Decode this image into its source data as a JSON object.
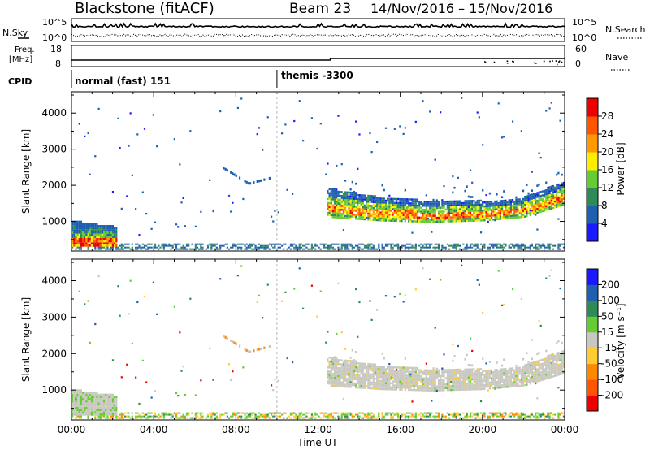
{
  "header": {
    "station": "Blackstone (fitACF)",
    "beam": "Beam 23",
    "dates": "14/Nov/2016 – 15/Nov/2016"
  },
  "aux": {
    "nsky_label": "N.Sky",
    "nsearch_label": "N.Search",
    "noise_ticks_left": [
      "10^5",
      "10^0"
    ],
    "noise_ticks_right": [
      "10^5",
      "10^0"
    ],
    "freq_label_1": "Freq.",
    "freq_label_2": "[MHz]",
    "freq_ticks": [
      "18",
      "8"
    ],
    "nave_label": "Nave",
    "nave_ticks": [
      "60",
      "0"
    ],
    "cpid_label": "CPID",
    "cpid_modes": [
      {
        "name": "normal (fast) 151",
        "start_hour": 0
      },
      {
        "name": "themis -3300",
        "start_hour": 10
      }
    ]
  },
  "axes": {
    "xlabel": "Time UT",
    "xticks": [
      "00:00",
      "04:00",
      "08:00",
      "12:00",
      "16:00",
      "20:00",
      "00:00"
    ],
    "xtick_hours": [
      0,
      4,
      8,
      12,
      16,
      20,
      24
    ],
    "ylabel": "Slant Range [km]",
    "yticks": [
      "1000",
      "2000",
      "3000",
      "4000"
    ],
    "ytick_values": [
      1000,
      2000,
      3000,
      4000
    ],
    "ylim": [
      180,
      4590
    ],
    "xlim_hours": [
      0,
      24
    ]
  },
  "power_colorbar": {
    "label": "Power [dB]",
    "ticks": [
      "4",
      "8",
      "12",
      "16",
      "20",
      "24",
      "28"
    ],
    "tick_values": [
      4,
      8,
      12,
      16,
      20,
      24,
      28
    ],
    "range": [
      0,
      32
    ],
    "colors": [
      "#1a1aff",
      "#1e5fb0",
      "#2e8b57",
      "#66cc33",
      "#ffee00",
      "#ff9900",
      "#ff5500",
      "#ee0000"
    ]
  },
  "velocity_colorbar": {
    "label": "Velocity [m s⁻¹]",
    "ticks": [
      "200",
      "100",
      "50",
      "15",
      "-15",
      "-50",
      "-100",
      "-200"
    ],
    "colors": [
      "#1a1aff",
      "#1e5fb0",
      "#2e8b57",
      "#66cc33",
      "#c8c8c0",
      "#ffcc33",
      "#ff8800",
      "#ff5500",
      "#ee0000"
    ]
  },
  "chart_data": [
    {
      "type": "heatmap",
      "title": "Blackstone (fitACF) Beam 23 14/Nov/2016 – 15/Nov/2016",
      "panel": "power",
      "xlabel": "Time UT",
      "ylabel": "Slant Range [km]",
      "colorbar": "Power [dB]",
      "ylim": [
        180,
        4590
      ],
      "xlim_hours": [
        0,
        24
      ],
      "features": [
        {
          "name": "near-range ground band",
          "hours": [
            0,
            24
          ],
          "range_km": [
            200,
            350
          ],
          "power_db": [
            4,
            12
          ]
        },
        {
          "name": "early strong echoes",
          "hours": [
            0,
            2.2
          ],
          "range_km": [
            250,
            1000
          ],
          "power_db": [
            4,
            30
          ]
        },
        {
          "name": "upper patch",
          "hours": [
            7.2,
            9.6
          ],
          "range_km": [
            1800,
            2200
          ],
          "power_db": [
            4,
            8
          ]
        },
        {
          "name": "main scatter band",
          "hours": [
            12.4,
            24
          ],
          "lower_edge_km": [
            1100,
            1000,
            960,
            1000,
            1100,
            1450
          ],
          "upper_edge_km": [
            1900,
            1650,
            1550,
            1550,
            1650,
            2100
          ],
          "edge_hours": [
            12.4,
            15,
            17.5,
            20,
            22,
            24
          ],
          "power_db": [
            4,
            28
          ]
        }
      ]
    },
    {
      "type": "heatmap",
      "panel": "velocity",
      "xlabel": "Time UT",
      "ylabel": "Slant Range [km]",
      "colorbar": "Velocity [m s⁻¹]",
      "ylim": [
        180,
        4590
      ],
      "xlim_hours": [
        0,
        24
      ],
      "features": [
        {
          "name": "near-range band",
          "hours": [
            0,
            24
          ],
          "range_km": [
            200,
            350
          ],
          "velocity_ms": [
            -50,
            50
          ]
        },
        {
          "name": "early echoes",
          "hours": [
            0,
            2.2
          ],
          "range_km": [
            250,
            1000
          ],
          "velocity_ms": [
            -15,
            15
          ]
        },
        {
          "name": "main scatter band",
          "hours": [
            12.4,
            24
          ],
          "range_km": [
            960,
            2100
          ],
          "velocity_ms": [
            -15,
            15
          ]
        }
      ]
    }
  ]
}
